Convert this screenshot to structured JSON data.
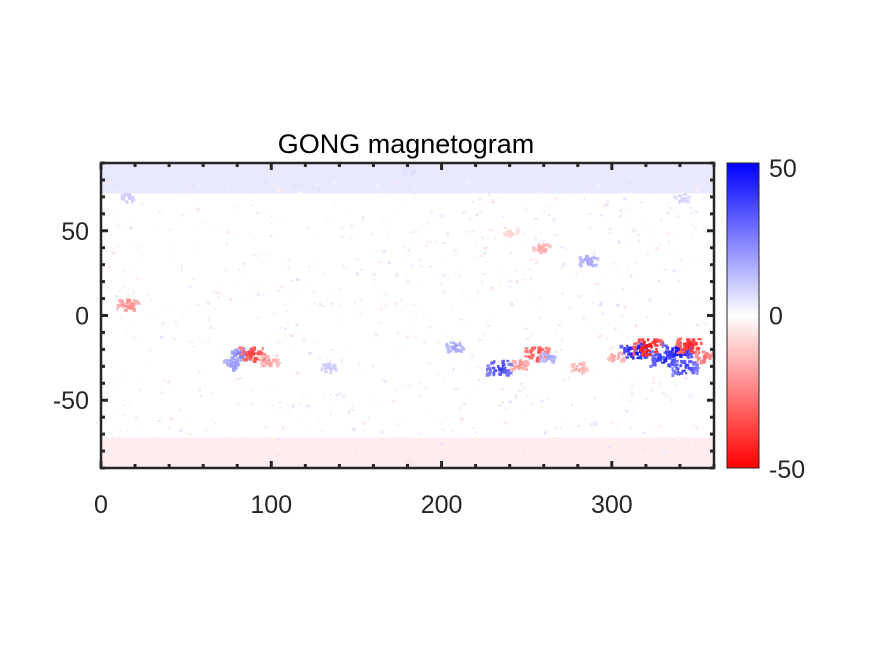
{
  "chart_data": {
    "type": "heatmap",
    "title": "GONG magnetogram",
    "xlabel": "",
    "ylabel": "",
    "xlim": [
      0,
      360
    ],
    "ylim": [
      -90,
      90
    ],
    "x_ticks": [
      0,
      100,
      200,
      300
    ],
    "y_ticks": [
      50,
      0,
      -50
    ],
    "colorbar": {
      "range": [
        -50,
        50
      ],
      "ticks": [
        50,
        0,
        -50
      ],
      "colors": {
        "min": "#ff0000",
        "mid": "#ffffff",
        "max": "#0000ff"
      }
    },
    "features": [
      {
        "lon": 82,
        "lat": -22,
        "value": 28
      },
      {
        "lon": 77,
        "lat": -28,
        "value": 22
      },
      {
        "lon": 88,
        "lat": -22,
        "value": -40
      },
      {
        "lon": 98,
        "lat": -26,
        "value": -20
      },
      {
        "lon": 133,
        "lat": -30,
        "value": 12
      },
      {
        "lon": 207,
        "lat": -18,
        "value": 20
      },
      {
        "lon": 233,
        "lat": -30,
        "value": 40
      },
      {
        "lon": 245,
        "lat": -28,
        "value": -22
      },
      {
        "lon": 255,
        "lat": -22,
        "value": -38
      },
      {
        "lon": 262,
        "lat": -24,
        "value": 18
      },
      {
        "lon": 280,
        "lat": -30,
        "value": -18
      },
      {
        "lon": 302,
        "lat": -24,
        "value": -20
      },
      {
        "lon": 313,
        "lat": -20,
        "value": 50
      },
      {
        "lon": 320,
        "lat": -18,
        "value": -50
      },
      {
        "lon": 330,
        "lat": -25,
        "value": 45
      },
      {
        "lon": 338,
        "lat": -20,
        "value": 50
      },
      {
        "lon": 345,
        "lat": -17,
        "value": -45
      },
      {
        "lon": 342,
        "lat": -30,
        "value": 40
      },
      {
        "lon": 354,
        "lat": -24,
        "value": -30
      },
      {
        "lon": 258,
        "lat": 40,
        "value": -18
      },
      {
        "lon": 240,
        "lat": 50,
        "value": -10
      },
      {
        "lon": 285,
        "lat": 33,
        "value": 20
      },
      {
        "lon": 15,
        "lat": 70,
        "value": 12
      },
      {
        "lon": 15,
        "lat": 7,
        "value": -25
      },
      {
        "lon": 340,
        "lat": 70,
        "value": 10
      },
      {
        "lon": 180,
        "lat": 85,
        "value": 8
      },
      {
        "lon": 180,
        "lat": -85,
        "value": -6
      }
    ]
  }
}
